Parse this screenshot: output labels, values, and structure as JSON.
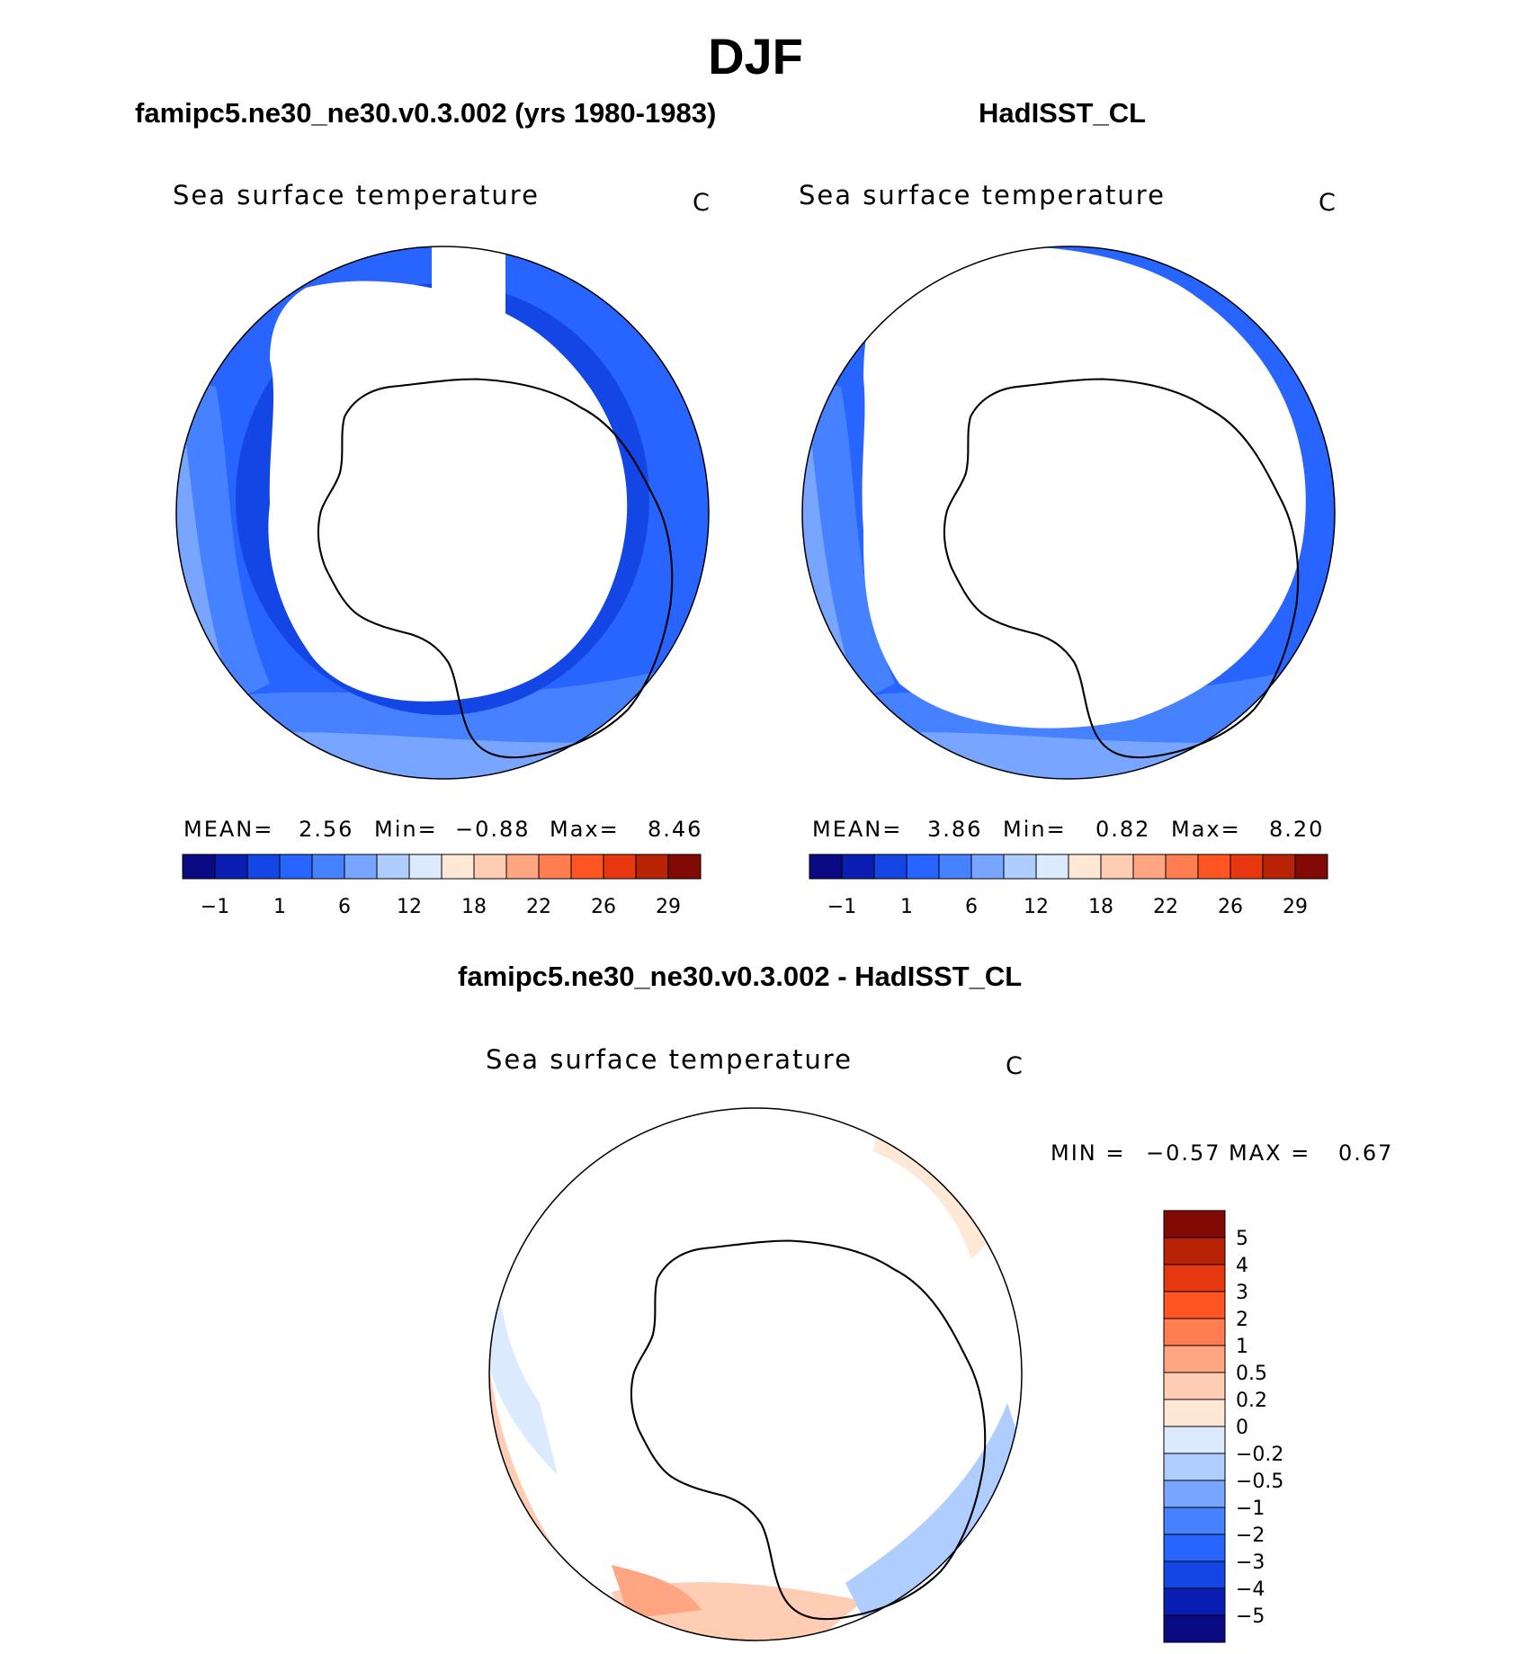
{
  "figure": {
    "title": "DJF"
  },
  "panels": [
    {
      "id": "model",
      "title": "famipc5.ne30_ne30.v0.3.002 (yrs 1980-1983)",
      "variable": "Sea surface temperature",
      "units": "C",
      "stats": {
        "mean_label": "MEAN=",
        "mean": "2.56",
        "min_label": "Min=",
        "min": "−0.88",
        "max_label": "Max=",
        "max": "8.46"
      }
    },
    {
      "id": "obs",
      "title": "HadISST_CL",
      "variable": "Sea surface temperature",
      "units": "C",
      "stats": {
        "mean_label": "MEAN=",
        "mean": "3.86",
        "min_label": "Min=",
        "min": "0.82",
        "max_label": "Max=",
        "max": "8.20"
      }
    },
    {
      "id": "diff",
      "title": "famipc5.ne30_ne30.v0.3.002 - HadISST_CL",
      "variable": "Sea surface temperature",
      "units": "C",
      "stats": {
        "min_label": "MIN =",
        "min": "−0.57",
        "max_label": "MAX =",
        "max": "0.67"
      }
    }
  ],
  "colorbars": {
    "sst": {
      "colors": [
        "#0a0a82",
        "#0a1eb4",
        "#1446e6",
        "#2864ff",
        "#4682ff",
        "#78a5ff",
        "#afcdff",
        "#dceaff",
        "#ffe8d6",
        "#ffcdb4",
        "#ffa582",
        "#ff7d50",
        "#ff5523",
        "#e6370f",
        "#b92305",
        "#820a05"
      ],
      "labels": [
        "−1",
        "1",
        "6",
        "12",
        "18",
        "22",
        "26",
        "29"
      ]
    },
    "diff": {
      "colors": [
        "#820a05",
        "#b92305",
        "#e6370f",
        "#ff5523",
        "#ff7d50",
        "#ffa582",
        "#ffcdb4",
        "#ffe8d6",
        "#dceaff",
        "#afcdff",
        "#78a5ff",
        "#4682ff",
        "#2864ff",
        "#1446e6",
        "#0a1eb4",
        "#0a0a82"
      ],
      "labels": [
        "5",
        "4",
        "3",
        "2",
        "1",
        "0.5",
        "0.2",
        "0",
        "−0.2",
        "−0.5",
        "−1",
        "−2",
        "−3",
        "−4",
        "−5"
      ]
    }
  }
}
